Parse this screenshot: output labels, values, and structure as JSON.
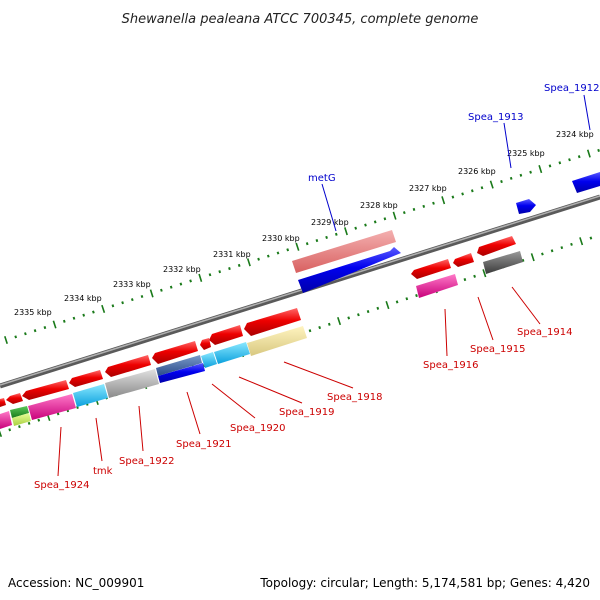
{
  "title": "Shewanella pealeana ATCC 700345, complete genome",
  "footer": {
    "accession": "Accession: NC_009901",
    "summary": "Topology: circular; Length: 5,174,581 bp; Genes: 4,420"
  },
  "colors": {
    "forward_label": "#0000cc",
    "reverse_label": "#cc0000",
    "tick": "#1a7a1a",
    "backbone": "#808080"
  },
  "ticks": [
    "2324 kbp",
    "2325 kbp",
    "2326 kbp",
    "2327 kbp",
    "2328 kbp",
    "2329 kbp",
    "2330 kbp",
    "2331 kbp",
    "2332 kbp",
    "2333 kbp",
    "2334 kbp",
    "2335 kbp"
  ],
  "labels": {
    "forward": [
      "Spea_1912",
      "Spea_1913",
      "metG"
    ],
    "reverse": [
      "Spea_1914",
      "Spea_1915",
      "Spea_1916",
      "Spea_1918",
      "Spea_1919",
      "Spea_1920",
      "Spea_1921",
      "Spea_1922",
      "tmk",
      "Spea_1924"
    ]
  }
}
